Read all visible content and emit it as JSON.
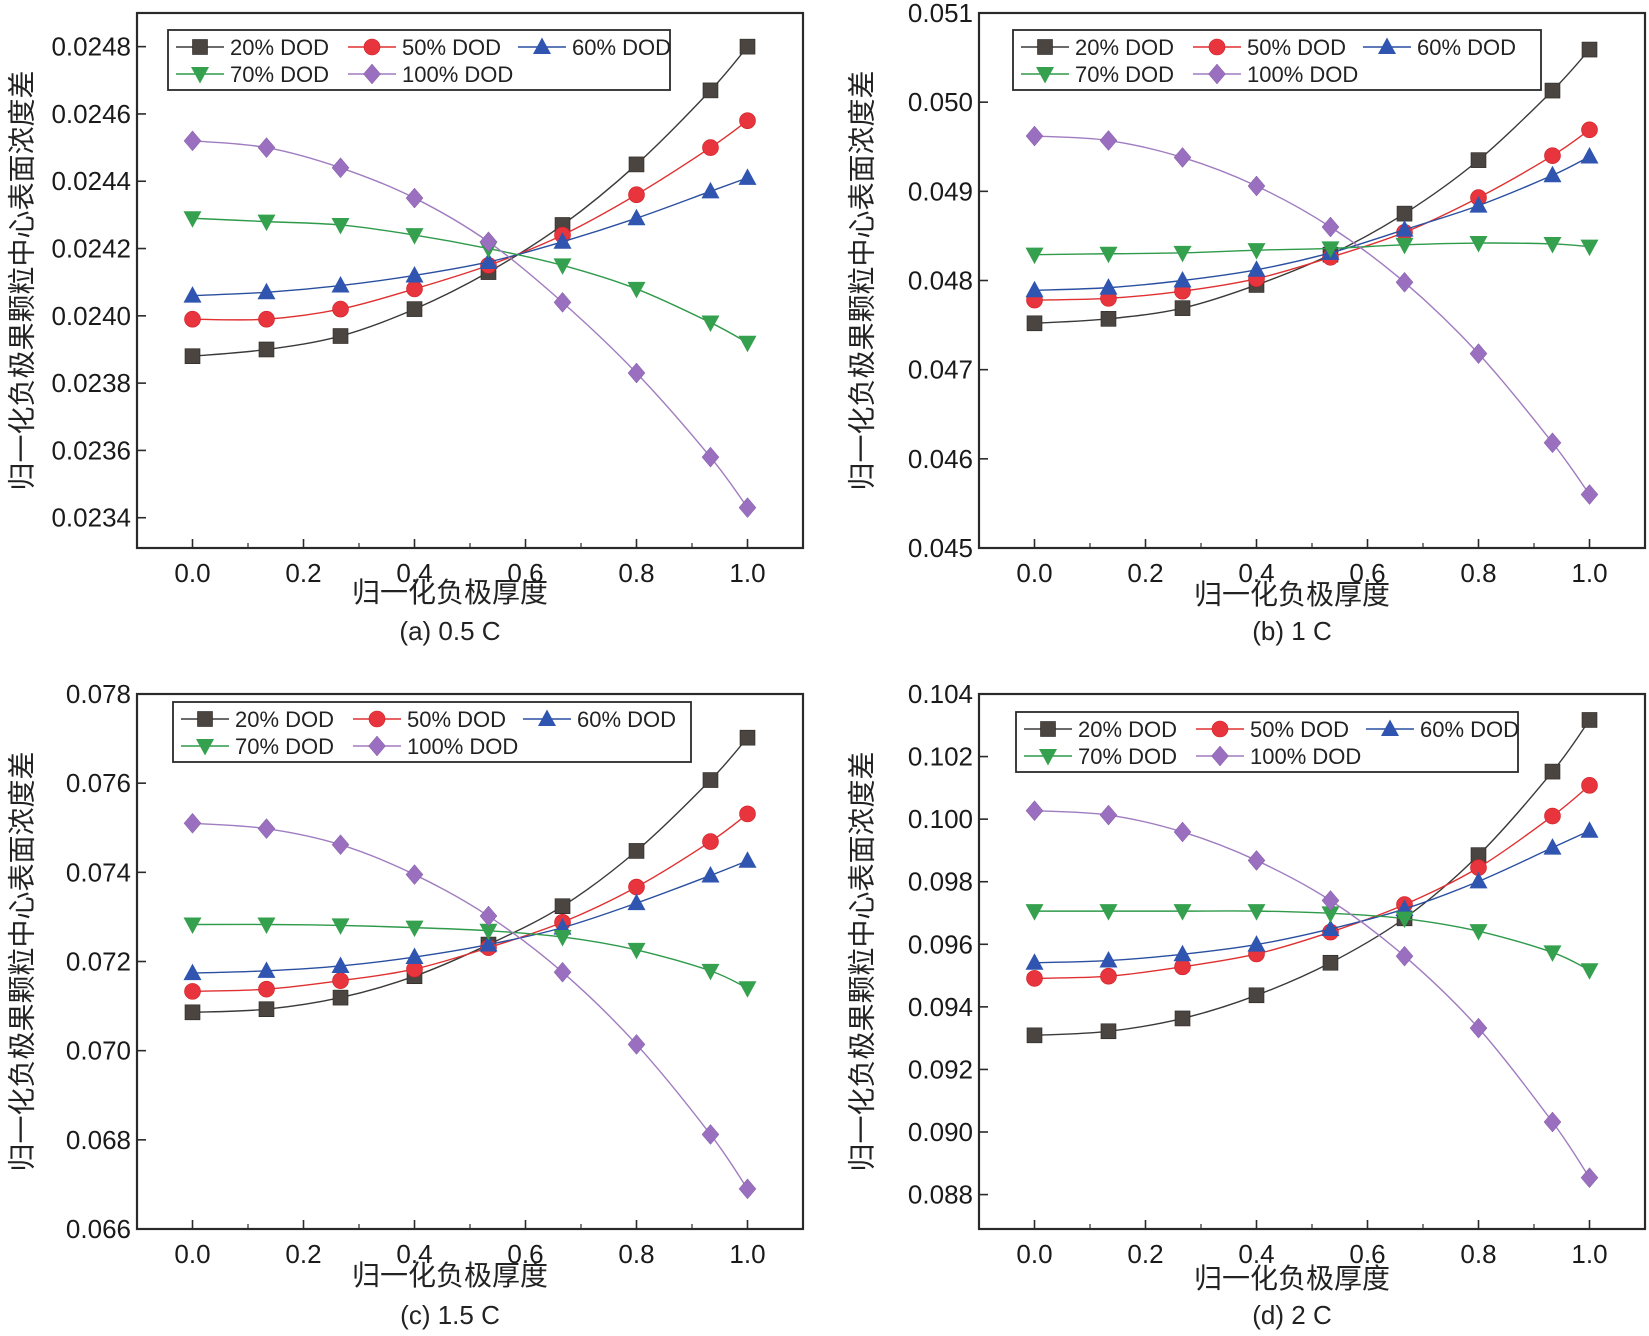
{
  "chart_data": [
    {
      "type": "line",
      "caption": "(a) 0.5 C",
      "xlabel": "归一化负极厚度",
      "ylabel": "归一化负极果颗粒中心表面浓度差",
      "xlim": [
        -0.1,
        1.1
      ],
      "ylim": [
        0.02331,
        0.0249
      ],
      "xticks": [
        "0.0",
        "0.2",
        "0.4",
        "0.6",
        "0.8",
        "1.0"
      ],
      "yticks": [
        "0.0234",
        "0.0236",
        "0.0238",
        "0.0240",
        "0.0242",
        "0.0244",
        "0.0246",
        "0.0248"
      ],
      "ytick_values": [
        0.0234,
        0.0236,
        0.0238,
        0.024,
        0.0242,
        0.0244,
        0.0246,
        0.0248
      ],
      "legend_position": "top-left",
      "x": [
        0,
        0.1333,
        0.2667,
        0.4,
        0.5333,
        0.6667,
        0.8,
        0.9333,
        1.0
      ],
      "series": [
        {
          "name": "20% DOD",
          "values": [
            0.02388,
            0.0239,
            0.02394,
            0.02402,
            0.02413,
            0.02427,
            0.02445,
            0.02467,
            0.0248
          ]
        },
        {
          "name": "50% DOD",
          "values": [
            0.02399,
            0.02399,
            0.02402,
            0.02408,
            0.02415,
            0.02424,
            0.02436,
            0.0245,
            0.02458
          ]
        },
        {
          "name": "60% DOD",
          "values": [
            0.02406,
            0.02407,
            0.02409,
            0.02412,
            0.02416,
            0.02422,
            0.02429,
            0.02437,
            0.02441
          ]
        },
        {
          "name": "70% DOD",
          "values": [
            0.02429,
            0.02428,
            0.02427,
            0.02424,
            0.0242,
            0.02415,
            0.02408,
            0.02398,
            0.02392
          ]
        },
        {
          "name": "100% DOD",
          "values": [
            0.02452,
            0.0245,
            0.02444,
            0.02435,
            0.02422,
            0.02404,
            0.02383,
            0.02358,
            0.02343
          ]
        }
      ]
    },
    {
      "type": "line",
      "caption": "(b) 1 C",
      "xlabel": "归一化负极厚度",
      "ylabel": "归一化负极果颗粒中心表面浓度差",
      "xlim": [
        -0.1,
        1.1
      ],
      "ylim": [
        0.045,
        0.051
      ],
      "xticks": [
        "0.0",
        "0.2",
        "0.4",
        "0.6",
        "0.8",
        "1.0"
      ],
      "yticks": [
        "0.045",
        "0.046",
        "0.047",
        "0.048",
        "0.049",
        "0.050",
        "0.051"
      ],
      "ytick_values": [
        0.045,
        0.046,
        0.047,
        0.048,
        0.049,
        0.05,
        0.051
      ],
      "legend_position": "top-left",
      "x": [
        0,
        0.1333,
        0.2667,
        0.4,
        0.5333,
        0.6667,
        0.8,
        0.9333,
        1.0
      ],
      "series": [
        {
          "name": "20% DOD",
          "values": [
            0.04752,
            0.04757,
            0.04769,
            0.04795,
            0.04829,
            0.04875,
            0.04935,
            0.05013,
            0.05059
          ]
        },
        {
          "name": "50% DOD",
          "values": [
            0.04778,
            0.0478,
            0.04788,
            0.04802,
            0.04826,
            0.04854,
            0.04893,
            0.0494,
            0.04969
          ]
        },
        {
          "name": "60% DOD",
          "values": [
            0.04789,
            0.04792,
            0.048,
            0.04812,
            0.04831,
            0.04857,
            0.04884,
            0.04918,
            0.04939
          ]
        },
        {
          "name": "70% DOD",
          "values": [
            0.04829,
            0.0483,
            0.04831,
            0.04834,
            0.04836,
            0.0484,
            0.04842,
            0.04841,
            0.04838
          ]
        },
        {
          "name": "100% DOD",
          "values": [
            0.04962,
            0.04957,
            0.04938,
            0.04906,
            0.0486,
            0.04798,
            0.04718,
            0.04618,
            0.0456
          ]
        }
      ]
    },
    {
      "type": "line",
      "caption": "(c) 1.5 C",
      "xlabel": "归一化负极厚度",
      "ylabel": "归一化负极果颗粒中心表面浓度差",
      "xlim": [
        -0.1,
        1.1
      ],
      "ylim": [
        0.066,
        0.078
      ],
      "xticks": [
        "0.0",
        "0.2",
        "0.4",
        "0.6",
        "0.8",
        "1.0"
      ],
      "yticks": [
        "0.066",
        "0.068",
        "0.070",
        "0.072",
        "0.074",
        "0.076",
        "0.078"
      ],
      "ytick_values": [
        0.066,
        0.068,
        0.07,
        0.072,
        0.074,
        0.076,
        0.078
      ],
      "legend_position": "top-left",
      "x": [
        0,
        0.1333,
        0.2667,
        0.4,
        0.5333,
        0.6667,
        0.8,
        0.9333,
        1.0
      ],
      "series": [
        {
          "name": "20% DOD",
          "values": [
            0.07086,
            0.07093,
            0.07119,
            0.07167,
            0.07238,
            0.07324,
            0.07448,
            0.07607,
            0.07702
          ]
        },
        {
          "name": "50% DOD",
          "values": [
            0.07133,
            0.07138,
            0.07157,
            0.07183,
            0.07231,
            0.07288,
            0.07367,
            0.07469,
            0.07531
          ]
        },
        {
          "name": "60% DOD",
          "values": [
            0.07174,
            0.07179,
            0.0719,
            0.0721,
            0.07238,
            0.07276,
            0.07331,
            0.07393,
            0.07426
          ]
        },
        {
          "name": "70% DOD",
          "values": [
            0.07283,
            0.07283,
            0.07281,
            0.07276,
            0.07269,
            0.07255,
            0.07226,
            0.07179,
            0.0714
          ]
        },
        {
          "name": "100% DOD",
          "values": [
            0.0751,
            0.07498,
            0.07462,
            0.07395,
            0.07302,
            0.07176,
            0.07014,
            0.06812,
            0.0669
          ]
        }
      ]
    },
    {
      "type": "line",
      "caption": "(d) 2 C",
      "xlabel": "归一化负极厚度",
      "ylabel": "归一化负极果颗粒中心表面浓度差",
      "xlim": [
        -0.1,
        1.1
      ],
      "ylim": [
        0.0869,
        0.104
      ],
      "xticks": [
        "0.0",
        "0.2",
        "0.4",
        "0.6",
        "0.8",
        "1.0"
      ],
      "yticks": [
        "0.088",
        "0.090",
        "0.092",
        "0.094",
        "0.096",
        "0.098",
        "0.100",
        "0.102",
        "0.104"
      ],
      "ytick_values": [
        0.088,
        0.09,
        0.092,
        0.094,
        0.096,
        0.098,
        0.1,
        0.102,
        0.104
      ],
      "legend_position": "top-left",
      "x": [
        0,
        0.1333,
        0.2667,
        0.4,
        0.5333,
        0.6667,
        0.8,
        0.9333,
        1.0
      ],
      "series": [
        {
          "name": "20% DOD",
          "values": [
            0.09309,
            0.09322,
            0.09363,
            0.09437,
            0.09541,
            0.09683,
            0.09885,
            0.10152,
            0.10317
          ]
        },
        {
          "name": "50% DOD",
          "values": [
            0.09491,
            0.09498,
            0.09528,
            0.09569,
            0.09639,
            0.09727,
            0.09845,
            0.1001,
            0.10108
          ]
        },
        {
          "name": "60% DOD",
          "values": [
            0.09541,
            0.09548,
            0.09568,
            0.09599,
            0.09649,
            0.09713,
            0.09801,
            0.09909,
            0.09963
          ]
        },
        {
          "name": "70% DOD",
          "values": [
            0.09706,
            0.09706,
            0.09706,
            0.09706,
            0.09699,
            0.09682,
            0.09642,
            0.09574,
            0.09517
          ]
        },
        {
          "name": "100% DOD",
          "values": [
            0.10027,
            0.10013,
            0.09959,
            0.09868,
            0.0974,
            0.09562,
            0.09332,
            0.09032,
            0.08854
          ]
        }
      ]
    }
  ],
  "series_styles": [
    {
      "name": "20% DOD",
      "line_color": "#3a3a3a",
      "marker_color": "#4a4540",
      "marker": "square"
    },
    {
      "name": "50% DOD",
      "line_color": "#e03030",
      "marker_color": "#e8343c",
      "marker": "circle"
    },
    {
      "name": "60% DOD",
      "line_color": "#2a4fa0",
      "marker_color": "#2f55b0",
      "marker": "triangle-up"
    },
    {
      "name": "70% DOD",
      "line_color": "#2e9a4a",
      "marker_color": "#35a04e",
      "marker": "triangle-down"
    },
    {
      "name": "100% DOD",
      "line_color": "#a07cc0",
      "marker_color": "#9b6fc0",
      "marker": "diamond"
    }
  ]
}
